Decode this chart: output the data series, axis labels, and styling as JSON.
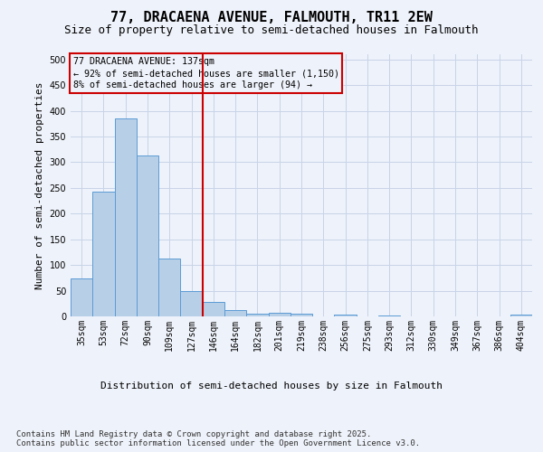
{
  "title_line1": "77, DRACAENA AVENUE, FALMOUTH, TR11 2EW",
  "title_line2": "Size of property relative to semi-detached houses in Falmouth",
  "xlabel": "Distribution of semi-detached houses by size in Falmouth",
  "ylabel": "Number of semi-detached properties",
  "categories": [
    "35sqm",
    "53sqm",
    "72sqm",
    "90sqm",
    "109sqm",
    "127sqm",
    "146sqm",
    "164sqm",
    "182sqm",
    "201sqm",
    "219sqm",
    "238sqm",
    "256sqm",
    "275sqm",
    "293sqm",
    "312sqm",
    "330sqm",
    "349sqm",
    "367sqm",
    "386sqm",
    "404sqm"
  ],
  "values": [
    73,
    242,
    385,
    313,
    113,
    50,
    28,
    12,
    6,
    7,
    6,
    0,
    4,
    0,
    1,
    0,
    0,
    0,
    0,
    0,
    3
  ],
  "bar_color": "#b8cfe8",
  "bar_edge_color": "#5b9bd5",
  "vline_x": 5.5,
  "vline_color": "#cc0000",
  "annotation_box_text": "77 DRACAENA AVENUE: 137sqm\n← 92% of semi-detached houses are smaller (1,150)\n8% of semi-detached houses are larger (94) →",
  "annotation_box_color": "#cc0000",
  "ylim": [
    0,
    510
  ],
  "yticks": [
    0,
    50,
    100,
    150,
    200,
    250,
    300,
    350,
    400,
    450,
    500
  ],
  "footer_text": "Contains HM Land Registry data © Crown copyright and database right 2025.\nContains public sector information licensed under the Open Government Licence v3.0.",
  "bg_color": "#eef2fa",
  "plot_bg_color": "#eef2fa",
  "grid_color": "#c8d4e8",
  "title_fontsize": 11,
  "subtitle_fontsize": 9,
  "ylabel_fontsize": 8,
  "xlabel_fontsize": 8,
  "tick_fontsize": 7,
  "footer_fontsize": 6.5
}
